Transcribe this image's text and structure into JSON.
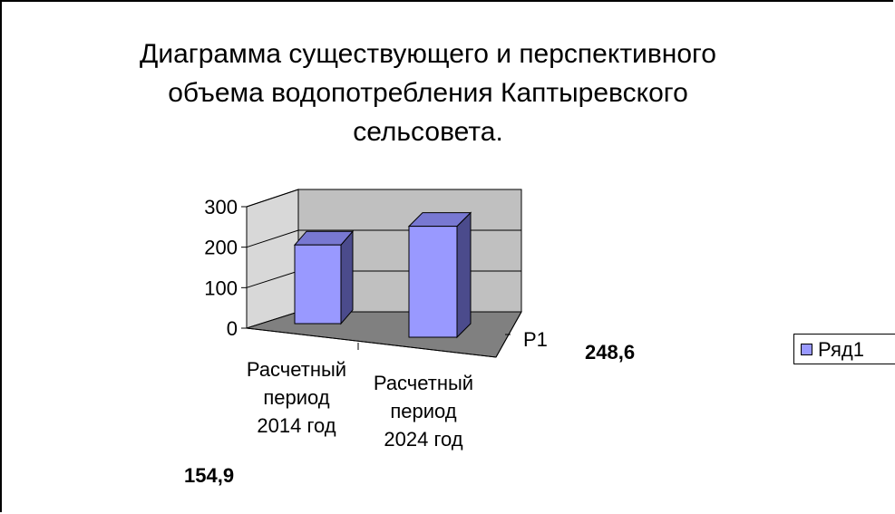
{
  "chart_data": {
    "type": "bar",
    "title": "Диаграмма существующего и перспективного\nобъема водопотребления Каптыревского\nсельсовета.",
    "categories": [
      "Расчетный период 2014 год",
      "Расчетный период 2024 год"
    ],
    "category_lines": [
      [
        "Расчетный",
        "период",
        "2014 год"
      ],
      [
        "Расчетный",
        "период",
        "2024 год"
      ]
    ],
    "series": [
      {
        "name": "Ряд1",
        "values": [
          154.9,
          248.6
        ]
      }
    ],
    "series_axis_label": "Р1",
    "data_labels": [
      "154,9",
      "248,6"
    ],
    "yticks": [
      "0",
      "100",
      "200",
      "300"
    ],
    "ylim": [
      0,
      300
    ],
    "grid": true,
    "legend": "right",
    "colors": {
      "bar_front": "#9999FF",
      "bar_side": "#4B4B8C",
      "bar_top": "#7878D2",
      "wall": "#C0C0C0",
      "floor": "#808080",
      "gridline": "#000000"
    }
  }
}
